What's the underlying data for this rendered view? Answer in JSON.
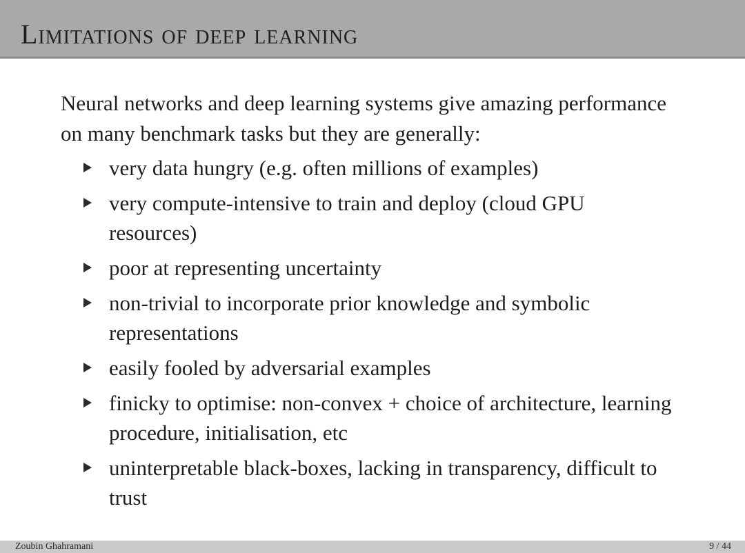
{
  "slide": {
    "title": "Limitations of deep learning",
    "intro": "Neural networks and deep learning systems give amazing performance on many benchmark tasks but they are generally:",
    "bullets": [
      "very data hungry (e.g. often millions of examples)",
      "very compute-intensive to train and deploy (cloud GPU resources)",
      "poor at representing uncertainty",
      "non-trivial to incorporate prior knowledge and symbolic representations",
      "easily fooled by adversarial examples",
      "finicky to optimise: non-convex + choice of architecture, learning procedure, initialisation, etc",
      "uninterpretable black-boxes, lacking in transparency, difficult to trust"
    ]
  },
  "footer": {
    "author": "Zoubin Ghahramani",
    "page": "9 / 44"
  },
  "colors": {
    "title_bar": "#a9a9a9",
    "footer_bar": "#c9c9c9",
    "text": "#1d1d1d"
  }
}
